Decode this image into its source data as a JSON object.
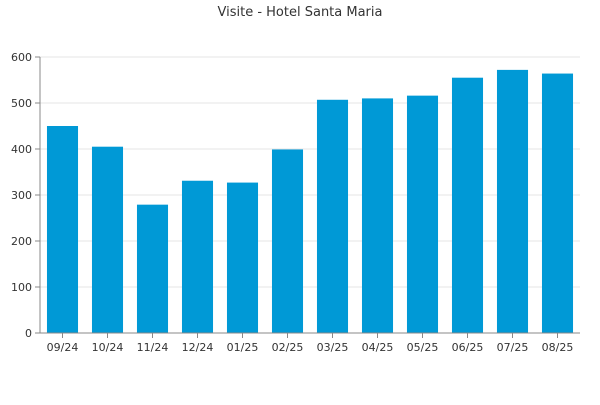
{
  "chart_data": {
    "type": "bar",
    "title": "Visite - Hotel Santa Maria",
    "xlabel": "",
    "ylabel": "",
    "categories": [
      "09/24",
      "10/24",
      "11/24",
      "12/24",
      "01/25",
      "02/25",
      "03/25",
      "04/25",
      "05/25",
      "06/25",
      "07/25",
      "08/25"
    ],
    "values": [
      450,
      405,
      279,
      331,
      327,
      399,
      507,
      510,
      516,
      555,
      572,
      564
    ],
    "ylim": [
      0,
      600
    ],
    "yticks": [
      0,
      100,
      200,
      300,
      400,
      500,
      600
    ],
    "grid": true,
    "legend": "none",
    "bar_color": "#0099d6",
    "grid_color": "#e6e6e6",
    "axis_color": "#888888"
  }
}
